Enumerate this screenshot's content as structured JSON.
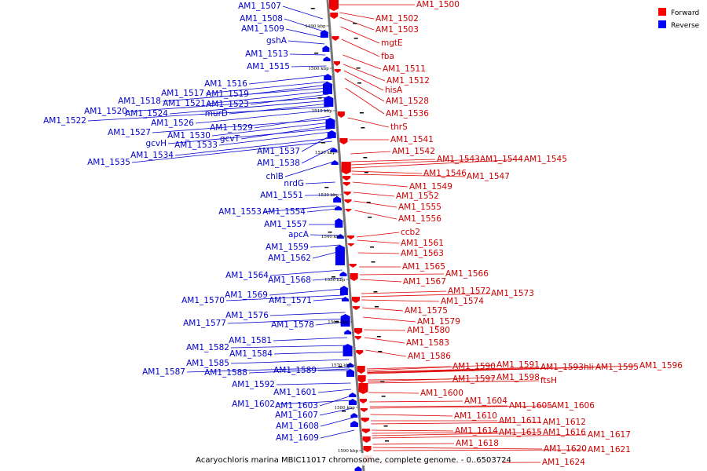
{
  "caption": "Acaryochloris marina MBIC11017 chromosome, complete genome. - 0..6503724",
  "legend": [
    {
      "label": "Forward",
      "color": "#ff0000"
    },
    {
      "label": "Reverse",
      "color": "#0000ff"
    }
  ],
  "colors": {
    "forward": "#dd0000",
    "reverse": "#0000cc",
    "backbone": "#777777"
  },
  "ticks": [
    "1490 kbp",
    "1500 kbp",
    "1510 kbp",
    "1520 kbp",
    "1530 kbp",
    "1540 kbp",
    "1550 kbp",
    "1560 kbp",
    "1570 kbp",
    "1580 kbp",
    "1590 kbp"
  ],
  "forward_labels": [
    "AM1_1500",
    "AM1_1502",
    "AM1_1503",
    "mgtE",
    "fba",
    "AM1_1511",
    "AM1_1512",
    "hisA",
    "AM1_1528",
    "AM1_1536",
    "thrS",
    "AM1_1541",
    "AM1_1542",
    "AM1_1543",
    "AM1_1544",
    "AM1_1545",
    "AM1_1546",
    "AM1_1547",
    "AM1_1549",
    "AM1_1552",
    "AM1_1555",
    "AM1_1556",
    "ccb2",
    "AM1_1561",
    "AM1_1563",
    "AM1_1565",
    "AM1_1566",
    "AM1_1567",
    "AM1_1572",
    "AM1_1573",
    "AM1_1574",
    "AM1_1575",
    "AM1_1579",
    "AM1_1580",
    "AM1_1583",
    "AM1_1586",
    "AM1_1590",
    "AM1_1591",
    "AM1_1593",
    "hli",
    "AM1_1595",
    "AM1_1596",
    "AM1_1597",
    "AM1_1598",
    "ftsH",
    "AM1_1600",
    "AM1_1604",
    "AM1_1605",
    "AM1_1606",
    "AM1_1610",
    "AM1_1611",
    "AM1_1612",
    "AM1_1614",
    "AM1_1615",
    "AM1_1616",
    "AM1_1617",
    "AM1_1618",
    "AM1_1620",
    "AM1_1621",
    "AM1_1624"
  ],
  "reverse_labels": [
    "AM1_1507",
    "AM1_1508",
    "AM1_1509",
    "gshA",
    "AM1_1513",
    "AM1_1515",
    "AM1_1516",
    "AM1_1517",
    "AM1_1519",
    "AM1_1518",
    "AM1_1521",
    "AM1_1523",
    "AM1_1520",
    "AM1_1524",
    "murD",
    "AM1_1522",
    "AM1_1526",
    "AM1_1529",
    "AM1_1527",
    "AM1_1530",
    "gcvT",
    "gcvH",
    "AM1_1533",
    "AM1_1537",
    "AM1_1534",
    "AM1_1538",
    "AM1_1535",
    "chlB",
    "nrdG",
    "AM1_1551",
    "AM1_1553",
    "AM1_1554",
    "AM1_1557",
    "apcA",
    "AM1_1559",
    "AM1_1562",
    "AM1_1564",
    "AM1_1568",
    "AM1_1569",
    "AM1_1570",
    "AM1_1571",
    "AM1_1576",
    "AM1_1577",
    "AM1_1578",
    "AM1_1581",
    "AM1_1582",
    "AM1_1584",
    "AM1_1585",
    "AM1_1587",
    "AM1_1588",
    "AM1_1589",
    "AM1_1592",
    "AM1_1601",
    "AM1_1602",
    "AM1_1603",
    "AM1_1607",
    "AM1_1608",
    "AM1_1609"
  ]
}
